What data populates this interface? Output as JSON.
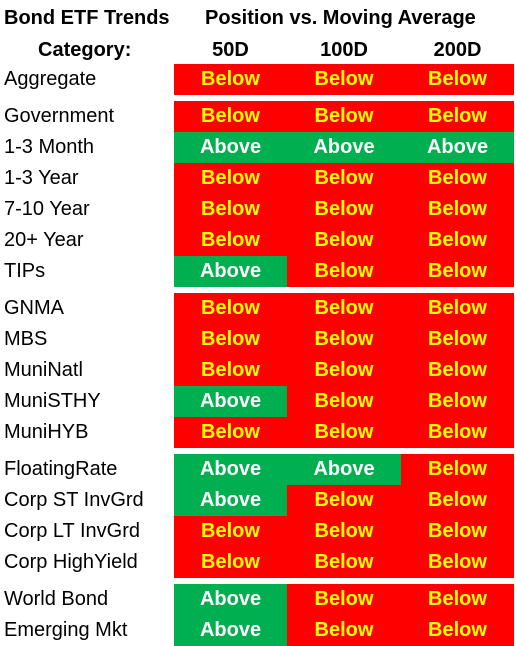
{
  "header": {
    "title": "Bond ETF Trends",
    "subtitle": "Position vs. Moving Average",
    "category_label": "Category:",
    "columns": [
      "50D",
      "100D",
      "200D"
    ]
  },
  "colors": {
    "below_bg": "#ff0000",
    "below_text": "#ffff00",
    "above_bg": "#00b050",
    "above_text": "#ffffff"
  },
  "groups": [
    {
      "rows": [
        {
          "label": "Aggregate",
          "values": [
            "Below",
            "Below",
            "Below"
          ]
        }
      ]
    },
    {
      "rows": [
        {
          "label": "Government",
          "values": [
            "Below",
            "Below",
            "Below"
          ]
        },
        {
          "label": "1-3 Month",
          "values": [
            "Above",
            "Above",
            "Above"
          ]
        },
        {
          "label": "1-3 Year",
          "values": [
            "Below",
            "Below",
            "Below"
          ]
        },
        {
          "label": "7-10 Year",
          "values": [
            "Below",
            "Below",
            "Below"
          ]
        },
        {
          "label": "20+ Year",
          "values": [
            "Below",
            "Below",
            "Below"
          ]
        },
        {
          "label": "TIPs",
          "values": [
            "Above",
            "Below",
            "Below"
          ]
        }
      ]
    },
    {
      "rows": [
        {
          "label": "GNMA",
          "values": [
            "Below",
            "Below",
            "Below"
          ]
        },
        {
          "label": "MBS",
          "values": [
            "Below",
            "Below",
            "Below"
          ]
        },
        {
          "label": "MuniNatl",
          "values": [
            "Below",
            "Below",
            "Below"
          ]
        },
        {
          "label": "MuniSTHY",
          "values": [
            "Above",
            "Below",
            "Below"
          ]
        },
        {
          "label": "MuniHYB",
          "values": [
            "Below",
            "Below",
            "Below"
          ]
        }
      ]
    },
    {
      "rows": [
        {
          "label": "FloatingRate",
          "values": [
            "Above",
            "Above",
            "Below"
          ]
        },
        {
          "label": "Corp ST InvGrd",
          "values": [
            "Above",
            "Below",
            "Below"
          ]
        },
        {
          "label": "Corp LT InvGrd",
          "values": [
            "Below",
            "Below",
            "Below"
          ]
        },
        {
          "label": "Corp HighYield",
          "values": [
            "Below",
            "Below",
            "Below"
          ]
        }
      ]
    },
    {
      "rows": [
        {
          "label": "World Bond",
          "values": [
            "Above",
            "Below",
            "Below"
          ]
        },
        {
          "label": "Emerging Mkt",
          "values": [
            "Above",
            "Below",
            "Below"
          ]
        }
      ]
    }
  ]
}
